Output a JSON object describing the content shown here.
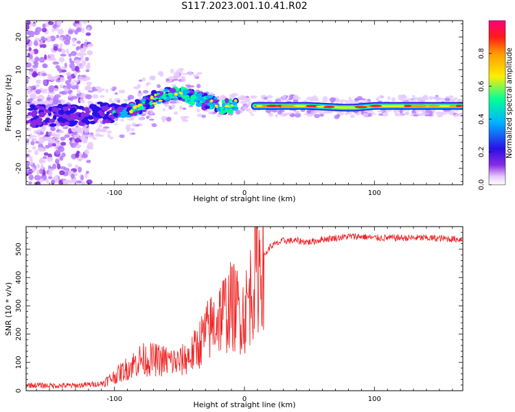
{
  "figure": {
    "title": "S117.2023.001.10.41.R02"
  },
  "chart_data": [
    {
      "type": "heatmap",
      "title": "",
      "xlabel": "Height of straight line (km)",
      "ylabel": "Frequency (Hz)",
      "xlim": [
        -168,
        168
      ],
      "ylim": [
        -25,
        25
      ],
      "xticks": [
        -100,
        0,
        100
      ],
      "yticks": [
        -20,
        -10,
        0,
        10,
        20
      ],
      "colorbar": {
        "label": "Normalized spectral amplitude",
        "range": [
          0,
          1
        ],
        "ticks": [
          0.0,
          0.2,
          0.4,
          0.6,
          0.8
        ],
        "colormap": [
          "#ffffff",
          "#e7c8ff",
          "#8a2be2",
          "#2a10e8",
          "#00b4ff",
          "#00ff9a",
          "#ffee00",
          "#ff9900",
          "#ff1a1a",
          "#ff0080"
        ]
      },
      "ridge": {
        "description_points": [
          {
            "x": -165,
            "y": -4
          },
          {
            "x": -140,
            "y": -4
          },
          {
            "x": -110,
            "y": -3
          },
          {
            "x": -95,
            "y": -3
          },
          {
            "x": -80,
            "y": -1
          },
          {
            "x": -65,
            "y": 2
          },
          {
            "x": -50,
            "y": 3
          },
          {
            "x": -35,
            "y": 1
          },
          {
            "x": -20,
            "y": -1
          },
          {
            "x": -10,
            "y": -1
          },
          {
            "x": -5,
            "y": 0
          },
          {
            "x": 5,
            "y": -1
          },
          {
            "x": 50,
            "y": -1
          },
          {
            "x": 75,
            "y": -1.5
          },
          {
            "x": 85,
            "y": -1.5
          },
          {
            "x": 100,
            "y": -1
          },
          {
            "x": 165,
            "y": -1
          }
        ]
      },
      "grid": false
    },
    {
      "type": "line",
      "title": "",
      "xlabel": "Height of straight line (km)",
      "ylabel": "SNR (10 * v/v)",
      "xlim": [
        -168,
        168
      ],
      "ylim": [
        0,
        580
      ],
      "xticks": [
        -100,
        0,
        100
      ],
      "yticks": [
        0,
        100,
        200,
        300,
        400,
        500
      ],
      "line_color": "#ee2222",
      "series": [
        {
          "x": [
            -168,
            -150,
            -130,
            -110,
            -100,
            -90,
            -80,
            -70,
            -60,
            -50,
            -40,
            -30,
            -20,
            -10,
            0,
            10,
            20,
            30,
            40,
            50,
            60,
            70,
            80,
            90,
            100,
            110,
            120,
            140,
            168
          ],
          "values": [
            20,
            18,
            18,
            25,
            50,
            80,
            110,
            110,
            105,
            100,
            130,
            200,
            260,
            300,
            270,
            440,
            510,
            530,
            530,
            525,
            535,
            540,
            545,
            545,
            540,
            540,
            540,
            540,
            535
          ]
        }
      ],
      "grid": false
    }
  ]
}
